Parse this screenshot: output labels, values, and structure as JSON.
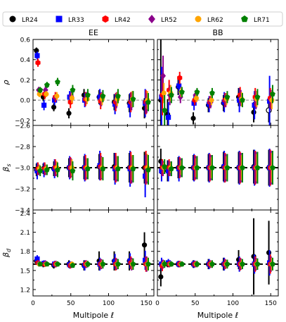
{
  "legend": [
    {
      "name": "LR24",
      "color": "#000000",
      "marker": "circle"
    },
    {
      "name": "LR33",
      "color": "#0000ff",
      "marker": "square"
    },
    {
      "name": "LR42",
      "color": "#ff0000",
      "marker": "hexagon"
    },
    {
      "name": "LR52",
      "color": "#8b008b",
      "marker": "diamond"
    },
    {
      "name": "LR62",
      "color": "#ffa500",
      "marker": "circle"
    },
    {
      "name": "LR71",
      "color": "#008000",
      "marker": "pentagon"
    }
  ],
  "columns": [
    "EE",
    "BB"
  ],
  "xlabel": "Multipole ℓ",
  "xlim": [
    0,
    160
  ],
  "xticks": [
    0,
    50,
    100,
    150
  ],
  "rows": [
    {
      "ylabel": "ρ",
      "ylim": [
        -0.25,
        0.6
      ],
      "yticks": [
        -0.2,
        0.0,
        0.2,
        0.4,
        0.6
      ],
      "ytick_labels": [
        "−0.2",
        "0.0",
        "0.2",
        "0.4",
        "0.6"
      ],
      "ref_line": 0.0
    },
    {
      "ylabel": "β_s",
      "ylim": [
        -3.4,
        -2.6
      ],
      "yticks": [
        -3.4,
        -3.2,
        -3.0,
        -2.8,
        -2.6
      ],
      "ytick_labels": [
        "−3.4",
        "−3.2",
        "−3.0",
        "−2.8",
        "−2.6"
      ],
      "ref_line": -3.0
    },
    {
      "ylabel": "β_d",
      "ylim": [
        1.1,
        2.45
      ],
      "yticks": [
        1.2,
        1.5,
        1.8,
        2.1,
        2.4
      ],
      "ytick_labels": [
        "1.2",
        "1.5",
        "1.8",
        "2.1",
        "2.4"
      ],
      "ref_line": 1.6
    }
  ],
  "chart_data": [
    {
      "type": "scatter",
      "panel": "EE rho",
      "x": [
        7,
        16,
        30,
        50,
        70,
        90,
        110,
        130,
        150
      ],
      "series": [
        {
          "name": "LR24",
          "values": [
            0.49,
            0.03,
            -0.07,
            -0.13,
            0.05,
            0.03,
            -0.02,
            -0.03,
            -0.08
          ],
          "err": [
            0.03,
            0.04,
            0.04,
            0.05,
            0.06,
            0.07,
            0.08,
            0.09,
            0.1
          ]
        },
        {
          "name": "LR33",
          "values": [
            0.44,
            -0.05,
            0.0,
            0.03,
            0.0,
            0.03,
            -0.04,
            -0.05,
            -0.03
          ],
          "err": [
            0.04,
            0.05,
            0.05,
            0.06,
            0.07,
            0.08,
            0.1,
            0.12,
            0.14
          ]
        },
        {
          "name": "LR42",
          "values": [
            0.37,
            0.06,
            0.03,
            -0.02,
            0.01,
            -0.01,
            -0.02,
            -0.02,
            -0.02
          ],
          "err": [
            0.04,
            0.05,
            0.05,
            0.06,
            0.07,
            0.08,
            0.09,
            0.1,
            0.12
          ]
        },
        {
          "name": "LR52",
          "values": [
            0.1,
            0.1,
            0.03,
            0.04,
            0.02,
            0.01,
            0.0,
            -0.01,
            -0.03
          ],
          "err": [
            0.03,
            0.04,
            0.04,
            0.05,
            0.06,
            0.07,
            0.08,
            0.09,
            0.1
          ]
        },
        {
          "name": "LR62",
          "values": [
            0.06,
            0.06,
            0.04,
            0.02,
            0.01,
            0.01,
            0.01,
            0.01,
            0.0
          ],
          "err": [
            0.03,
            0.03,
            0.04,
            0.05,
            0.05,
            0.06,
            0.07,
            0.08,
            0.09
          ]
        },
        {
          "name": "LR71",
          "values": [
            0.1,
            0.15,
            0.18,
            0.1,
            0.05,
            0.04,
            0.04,
            0.01,
            -0.02
          ],
          "err": [
            0.03,
            0.03,
            0.04,
            0.05,
            0.06,
            0.06,
            0.07,
            0.08,
            0.09
          ]
        }
      ]
    },
    {
      "type": "scatter",
      "panel": "BB rho",
      "x": [
        7,
        16,
        30,
        50,
        70,
        90,
        110,
        130,
        150
      ],
      "series": [
        {
          "name": "LR24",
          "values": [
            0.0,
            -0.14,
            0.13,
            -0.18,
            -0.05,
            -0.03,
            0.03,
            -0.12,
            -0.1
          ],
          "err": [
            0.6,
            0.15,
            0.08,
            0.06,
            0.07,
            0.08,
            0.09,
            0.1,
            0.12
          ],
          "hollow_last": true
        },
        {
          "name": "LR33",
          "values": [
            0.03,
            -0.17,
            0.14,
            -0.03,
            -0.04,
            -0.02,
            0.0,
            -0.05,
            -0.01
          ],
          "err": [
            0.3,
            0.15,
            0.08,
            0.07,
            0.08,
            0.1,
            0.12,
            0.14,
            0.25
          ]
        },
        {
          "name": "LR42",
          "values": [
            0.05,
            0.1,
            0.22,
            0.0,
            -0.02,
            0.0,
            0.05,
            0.03,
            0.02
          ],
          "err": [
            0.2,
            0.1,
            0.06,
            0.05,
            0.06,
            0.07,
            0.08,
            0.09,
            0.1
          ]
        },
        {
          "name": "LR52",
          "values": [
            0.24,
            0.05,
            0.03,
            0.05,
            -0.02,
            0.0,
            0.02,
            0.0,
            0.0
          ],
          "err": [
            0.2,
            0.1,
            0.06,
            0.05,
            0.06,
            0.07,
            0.08,
            0.09,
            0.1
          ]
        },
        {
          "name": "LR62",
          "values": [
            0.07,
            0.07,
            0.08,
            0.02,
            0.0,
            0.01,
            0.01,
            0.01,
            0.0
          ],
          "err": [
            0.1,
            0.08,
            0.05,
            0.04,
            0.05,
            0.06,
            0.07,
            0.08,
            0.09
          ]
        },
        {
          "name": "LR71",
          "values": [
            -0.1,
            0.05,
            0.08,
            0.08,
            0.07,
            0.03,
            0.0,
            0.03,
            0.06
          ],
          "err": [
            0.15,
            0.08,
            0.05,
            0.04,
            0.05,
            0.06,
            0.07,
            0.08,
            0.09
          ]
        }
      ]
    },
    {
      "type": "scatter",
      "panel": "EE beta_s",
      "x": [
        7,
        16,
        30,
        50,
        70,
        90,
        110,
        130,
        150
      ],
      "series": [
        {
          "name": "LR24",
          "values": [
            -3.02,
            -3.01,
            -3.01,
            -3.0,
            -3.0,
            -2.99,
            -2.99,
            -3.0,
            -3.0
          ],
          "err": [
            0.06,
            0.05,
            0.07,
            0.09,
            0.11,
            0.12,
            0.13,
            0.14,
            0.15
          ]
        },
        {
          "name": "LR33",
          "values": [
            -3.03,
            -3.02,
            -3.01,
            -3.0,
            -3.0,
            -2.98,
            -3.01,
            -3.01,
            -3.08
          ],
          "err": [
            0.08,
            0.07,
            0.09,
            0.11,
            0.13,
            0.14,
            0.15,
            0.17,
            0.2
          ]
        },
        {
          "name": "LR42",
          "values": [
            -3.01,
            -3.01,
            -3.0,
            -3.0,
            -3.0,
            -2.99,
            -3.0,
            -3.0,
            -3.0
          ],
          "err": [
            0.06,
            0.06,
            0.08,
            0.1,
            0.12,
            0.13,
            0.14,
            0.15,
            0.16
          ]
        },
        {
          "name": "LR52",
          "values": [
            -3.02,
            -3.02,
            -3.01,
            -3.0,
            -3.01,
            -3.0,
            -3.01,
            -3.02,
            -3.01
          ],
          "err": [
            0.05,
            0.05,
            0.07,
            0.09,
            0.1,
            0.11,
            0.12,
            0.13,
            0.14
          ]
        },
        {
          "name": "LR62",
          "values": [
            -3.01,
            -3.01,
            -3.0,
            -3.0,
            -3.0,
            -3.0,
            -3.0,
            -3.0,
            -3.0
          ],
          "err": [
            0.04,
            0.04,
            0.06,
            0.08,
            0.09,
            0.1,
            0.11,
            0.12,
            0.13
          ]
        },
        {
          "name": "LR71",
          "values": [
            -3.03,
            -3.02,
            -3.02,
            -3.03,
            -3.01,
            -3.01,
            -3.01,
            -3.01,
            -3.02
          ],
          "err": [
            0.05,
            0.05,
            0.07,
            0.09,
            0.1,
            0.11,
            0.12,
            0.13,
            0.14
          ]
        }
      ]
    },
    {
      "type": "scatter",
      "panel": "BB beta_s",
      "x": [
        7,
        16,
        30,
        50,
        70,
        90,
        110,
        130,
        150
      ],
      "series": [
        {
          "name": "LR24",
          "values": [
            -2.94,
            -3.03,
            -3.0,
            -3.0,
            -3.0,
            -2.99,
            -3.0,
            -2.99,
            -3.0
          ],
          "err": [
            0.12,
            0.1,
            0.1,
            0.12,
            0.13,
            0.14,
            0.15,
            0.16,
            0.17
          ]
        },
        {
          "name": "LR33",
          "values": [
            -3.03,
            -3.03,
            -3.01,
            -3.0,
            -3.0,
            -2.99,
            -3.0,
            -3.0,
            -3.0
          ],
          "err": [
            0.1,
            0.1,
            0.12,
            0.13,
            0.14,
            0.15,
            0.16,
            0.17,
            0.18
          ]
        },
        {
          "name": "LR42",
          "values": [
            -3.0,
            -3.0,
            -3.0,
            -3.0,
            -3.0,
            -3.0,
            -3.0,
            -3.0,
            -3.0
          ],
          "err": [
            0.08,
            0.08,
            0.1,
            0.12,
            0.13,
            0.14,
            0.15,
            0.16,
            0.17
          ]
        },
        {
          "name": "LR52",
          "values": [
            -3.01,
            -3.01,
            -3.0,
            -3.0,
            -3.0,
            -3.0,
            -3.0,
            -3.0,
            -3.0
          ],
          "err": [
            0.07,
            0.07,
            0.09,
            0.11,
            0.12,
            0.13,
            0.14,
            0.15,
            0.16
          ]
        },
        {
          "name": "LR62",
          "values": [
            -3.0,
            -3.0,
            -3.0,
            -3.0,
            -3.0,
            -3.0,
            -3.0,
            -3.0,
            -3.0
          ],
          "err": [
            0.05,
            0.05,
            0.07,
            0.09,
            0.1,
            0.11,
            0.12,
            0.13,
            0.14
          ]
        },
        {
          "name": "LR71",
          "values": [
            -2.99,
            -3.01,
            -3.0,
            -3.0,
            -3.0,
            -3.0,
            -3.0,
            -3.0,
            -3.0
          ],
          "err": [
            0.07,
            0.07,
            0.09,
            0.11,
            0.12,
            0.13,
            0.14,
            0.15,
            0.16
          ]
        }
      ]
    },
    {
      "type": "scatter",
      "panel": "EE beta_d",
      "x": [
        7,
        16,
        30,
        50,
        70,
        90,
        110,
        130,
        150
      ],
      "series": [
        {
          "name": "LR24",
          "values": [
            1.65,
            1.6,
            1.58,
            1.6,
            1.58,
            1.65,
            1.65,
            1.65,
            1.9
          ],
          "err": [
            0.05,
            0.05,
            0.05,
            0.06,
            0.08,
            0.15,
            0.15,
            0.15,
            0.2
          ]
        },
        {
          "name": "LR33",
          "values": [
            1.68,
            1.61,
            1.6,
            1.59,
            1.58,
            1.6,
            1.64,
            1.65,
            1.66
          ],
          "err": [
            0.06,
            0.05,
            0.05,
            0.06,
            0.08,
            0.1,
            0.12,
            0.12,
            0.15
          ]
        },
        {
          "name": "LR42",
          "values": [
            1.62,
            1.6,
            1.6,
            1.58,
            1.6,
            1.6,
            1.6,
            1.62,
            1.6
          ],
          "err": [
            0.04,
            0.04,
            0.05,
            0.05,
            0.06,
            0.08,
            0.1,
            0.1,
            0.12
          ]
        },
        {
          "name": "LR52",
          "values": [
            1.61,
            1.61,
            1.6,
            1.59,
            1.6,
            1.6,
            1.6,
            1.6,
            1.6
          ],
          "err": [
            0.04,
            0.04,
            0.05,
            0.05,
            0.06,
            0.08,
            0.09,
            0.1,
            0.12
          ]
        },
        {
          "name": "LR62",
          "values": [
            1.6,
            1.6,
            1.6,
            1.6,
            1.6,
            1.6,
            1.6,
            1.6,
            1.6
          ],
          "err": [
            0.03,
            0.03,
            0.04,
            0.04,
            0.05,
            0.06,
            0.07,
            0.08,
            0.1
          ]
        },
        {
          "name": "LR71",
          "values": [
            1.6,
            1.6,
            1.6,
            1.58,
            1.6,
            1.6,
            1.6,
            1.6,
            1.6
          ],
          "err": [
            0.03,
            0.03,
            0.04,
            0.04,
            0.05,
            0.07,
            0.08,
            0.09,
            0.1
          ]
        }
      ]
    },
    {
      "type": "scatter",
      "panel": "BB beta_d",
      "x": [
        7,
        16,
        30,
        50,
        70,
        90,
        110,
        130,
        150
      ],
      "series": [
        {
          "name": "LR24",
          "values": [
            1.4,
            1.6,
            1.6,
            1.6,
            1.6,
            1.6,
            1.67,
            1.72,
            1.78
          ],
          "err": [
            0.15,
            0.05,
            0.05,
            0.06,
            0.08,
            0.1,
            0.15,
            0.6,
            0.5
          ]
        },
        {
          "name": "LR33",
          "values": [
            1.6,
            1.62,
            1.6,
            1.6,
            1.6,
            1.6,
            1.6,
            1.6,
            1.62
          ],
          "err": [
            0.1,
            0.06,
            0.05,
            0.06,
            0.08,
            0.1,
            0.12,
            0.15,
            0.2
          ]
        },
        {
          "name": "LR42",
          "values": [
            1.57,
            1.6,
            1.6,
            1.6,
            1.6,
            1.6,
            1.6,
            1.6,
            1.6
          ],
          "err": [
            0.08,
            0.05,
            0.05,
            0.05,
            0.06,
            0.08,
            0.1,
            0.12,
            0.15
          ]
        },
        {
          "name": "LR52",
          "values": [
            1.6,
            1.6,
            1.6,
            1.6,
            1.6,
            1.6,
            1.6,
            1.6,
            1.6
          ],
          "err": [
            0.07,
            0.04,
            0.04,
            0.05,
            0.06,
            0.07,
            0.09,
            0.1,
            0.12
          ]
        },
        {
          "name": "LR62",
          "values": [
            1.6,
            1.6,
            1.6,
            1.6,
            1.6,
            1.6,
            1.6,
            1.6,
            1.6
          ],
          "err": [
            0.05,
            0.03,
            0.04,
            0.04,
            0.05,
            0.06,
            0.07,
            0.08,
            0.1
          ]
        },
        {
          "name": "LR71",
          "values": [
            1.6,
            1.6,
            1.6,
            1.6,
            1.6,
            1.6,
            1.6,
            1.6,
            1.6
          ],
          "err": [
            0.06,
            0.04,
            0.04,
            0.05,
            0.06,
            0.07,
            0.08,
            0.09,
            0.1
          ]
        }
      ]
    }
  ]
}
